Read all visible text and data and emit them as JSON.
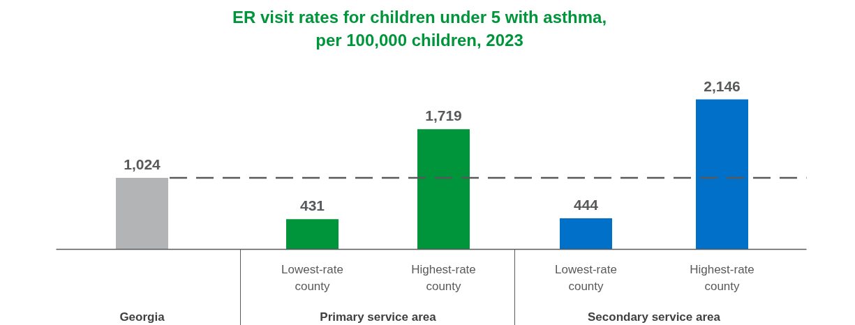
{
  "chart_data": {
    "type": "bar",
    "title": "ER visit rates for children under 5 with asthma,\nper 100,000 children, 2023",
    "categories": [
      null,
      "Lowest-rate county",
      "Highest-rate county",
      "Lowest-rate county",
      "Highest-rate county"
    ],
    "values": [
      1024,
      431,
      1719,
      444,
      2146
    ],
    "colors": [
      "#b3b4b6",
      "#00953b",
      "#00953b",
      "#0070c8",
      "#0070c8"
    ],
    "value_labels": [
      "1,024",
      "431",
      "1,719",
      "444",
      "2,146"
    ],
    "ref_lines": [
      {
        "axis": "y",
        "value": 1024,
        "color": "#58595b",
        "line_style": "dashed"
      }
    ],
    "annotations": [
      "Georgia",
      "Primary service area",
      "Secondary service area"
    ],
    "grid": false
  }
}
